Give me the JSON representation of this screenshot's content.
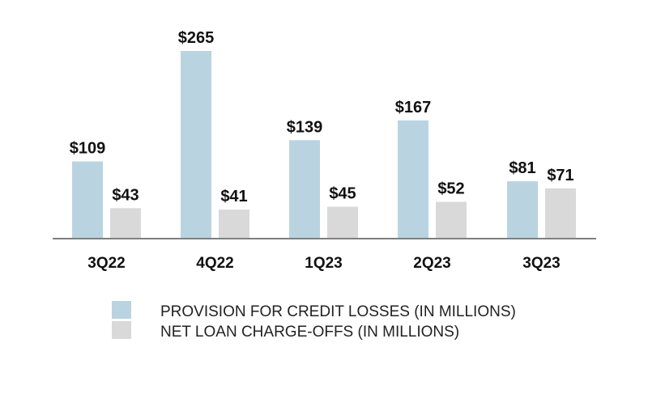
{
  "chart_data": {
    "type": "bar",
    "title": "",
    "xlabel": "",
    "ylabel": "",
    "ylim": [
      0,
      265
    ],
    "grid": false,
    "legend_position": "bottom",
    "categories": [
      "3Q22",
      "4Q22",
      "1Q23",
      "2Q23",
      "3Q23"
    ],
    "series": [
      {
        "name": "PROVISION FOR CREDIT LOSSES (IN MILLIONS)",
        "color": "#b9d4e0",
        "values": [
          109,
          265,
          139,
          167,
          81
        ],
        "labels": [
          "$109",
          "$265",
          "$139",
          "$167",
          "$81"
        ]
      },
      {
        "name": "NET LOAN CHARGE-OFFS (IN MILLIONS)",
        "color": "#d9d9d9",
        "values": [
          43,
          41,
          45,
          52,
          71
        ],
        "labels": [
          "$43",
          "$41",
          "$45",
          "$52",
          "$71"
        ]
      }
    ],
    "axis_color": "#7f7f7f"
  }
}
